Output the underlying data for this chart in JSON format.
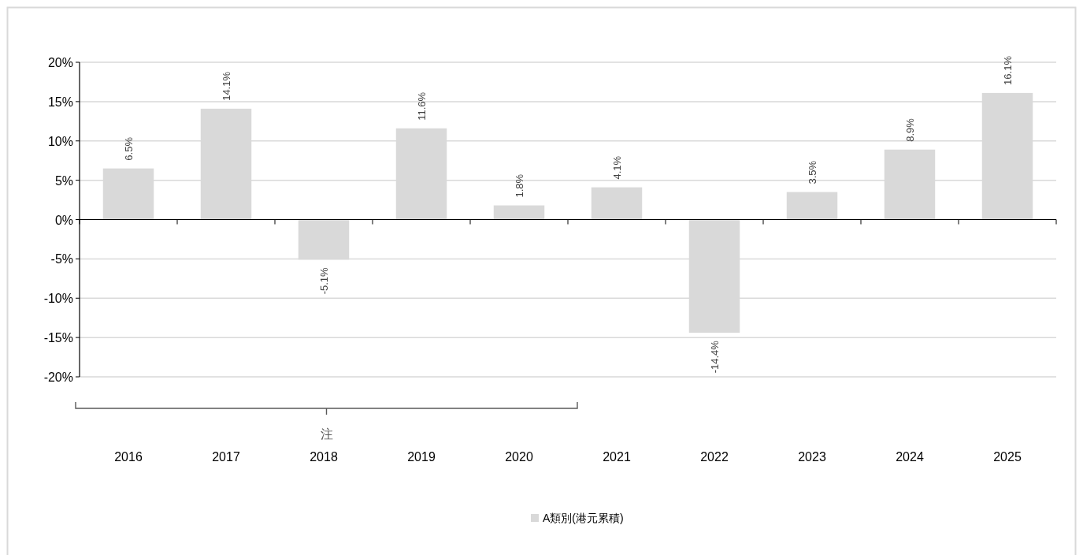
{
  "chart_data": {
    "type": "bar",
    "categories": [
      "2016",
      "2017",
      "2018",
      "2019",
      "2020",
      "2021",
      "2022",
      "2023",
      "2024",
      "2025"
    ],
    "series": [
      {
        "name": "A類別(港元累積)",
        "color": "#d9d9d9",
        "values": [
          6.5,
          14.1,
          -5.1,
          11.6,
          1.8,
          4.1,
          -14.4,
          3.5,
          8.9,
          16.1
        ],
        "value_labels": [
          "6.5%",
          "14.1%",
          "-5.1%",
          "11.6%",
          "1.8%",
          "4.1%",
          "-14.4%",
          "3.5%",
          "8.9%",
          "16.1%"
        ]
      }
    ],
    "ylim": [
      -20,
      20
    ],
    "yticks": [
      {
        "value": -20,
        "label": "-20%"
      },
      {
        "value": -15,
        "label": "-15%"
      },
      {
        "value": -10,
        "label": "-10%"
      },
      {
        "value": -5,
        "label": "-5%"
      },
      {
        "value": 0,
        "label": "0%"
      },
      {
        "value": 5,
        "label": "5%"
      },
      {
        "value": 10,
        "label": "10%"
      },
      {
        "value": 15,
        "label": "15%"
      },
      {
        "value": 20,
        "label": "20%"
      }
    ],
    "grid": "y",
    "legend": "bottom",
    "annotations": [
      "注"
    ]
  }
}
